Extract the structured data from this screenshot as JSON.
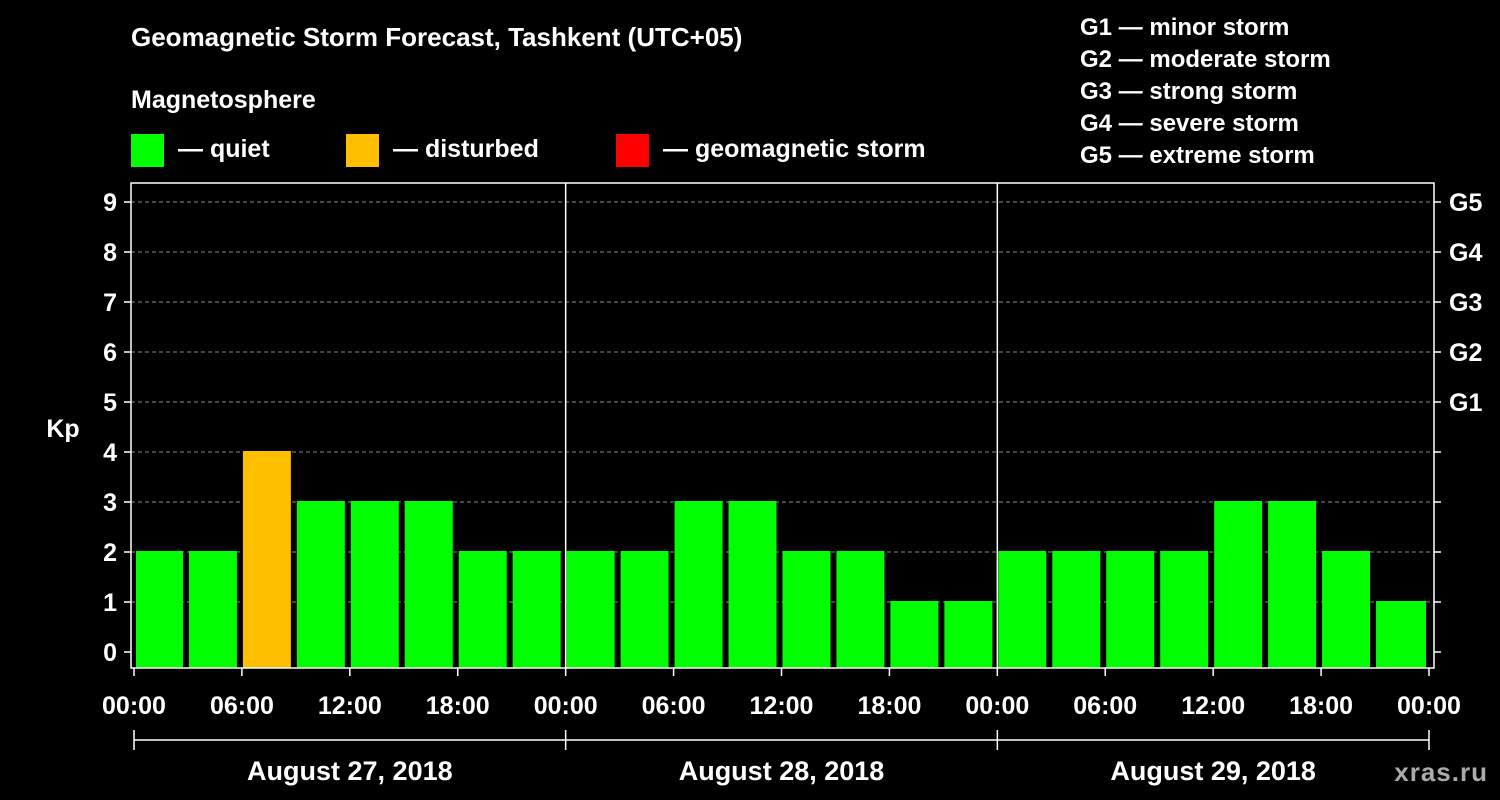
{
  "title": "Geomagnetic Storm Forecast, Tashkent (UTC+05)",
  "subtitle": "Magnetosphere",
  "legend": [
    {
      "label": "— quiet",
      "color": "#00ff00"
    },
    {
      "label": "— disturbed",
      "color": "#ffbf00"
    },
    {
      "label": "— geomagnetic storm",
      "color": "#ff0000"
    }
  ],
  "storm_scale": [
    "G1 — minor storm",
    "G2 — moderate storm",
    "G3 — strong storm",
    "G4 — severe storm",
    "G5 — extreme storm"
  ],
  "credit": "xras.ru",
  "chart_data": {
    "type": "bar",
    "ylabel": "Kp",
    "ylim": [
      0,
      9
    ],
    "yticks": [
      "0",
      "1",
      "2",
      "3",
      "4",
      "5",
      "6",
      "7",
      "8",
      "9"
    ],
    "right_axis_labels": [
      {
        "kp": 5,
        "label": "G1"
      },
      {
        "kp": 6,
        "label": "G2"
      },
      {
        "kp": 7,
        "label": "G3"
      },
      {
        "kp": 8,
        "label": "G4"
      },
      {
        "kp": 9,
        "label": "G5"
      }
    ],
    "xticks": [
      "00:00",
      "06:00",
      "12:00",
      "18:00",
      "00:00",
      "06:00",
      "12:00",
      "18:00",
      "00:00",
      "06:00",
      "12:00",
      "18:00",
      "00:00"
    ],
    "days": [
      "August 27, 2018",
      "August 28, 2018",
      "August 29, 2018"
    ],
    "interval_hours": 3,
    "values": [
      2,
      2,
      4,
      3,
      3,
      3,
      2,
      2,
      2,
      2,
      3,
      3,
      2,
      2,
      1,
      1,
      2,
      2,
      2,
      2,
      3,
      3,
      2,
      1
    ],
    "status": [
      "quiet",
      "quiet",
      "disturbed",
      "quiet",
      "quiet",
      "quiet",
      "quiet",
      "quiet",
      "quiet",
      "quiet",
      "quiet",
      "quiet",
      "quiet",
      "quiet",
      "quiet",
      "quiet",
      "quiet",
      "quiet",
      "quiet",
      "quiet",
      "quiet",
      "quiet",
      "quiet",
      "quiet"
    ],
    "colors": {
      "quiet": "#00ff00",
      "disturbed": "#ffbf00",
      "storm": "#ff0000"
    },
    "grid": "dashed horizontal at each Kp level, solid vertical at day boundaries"
  }
}
